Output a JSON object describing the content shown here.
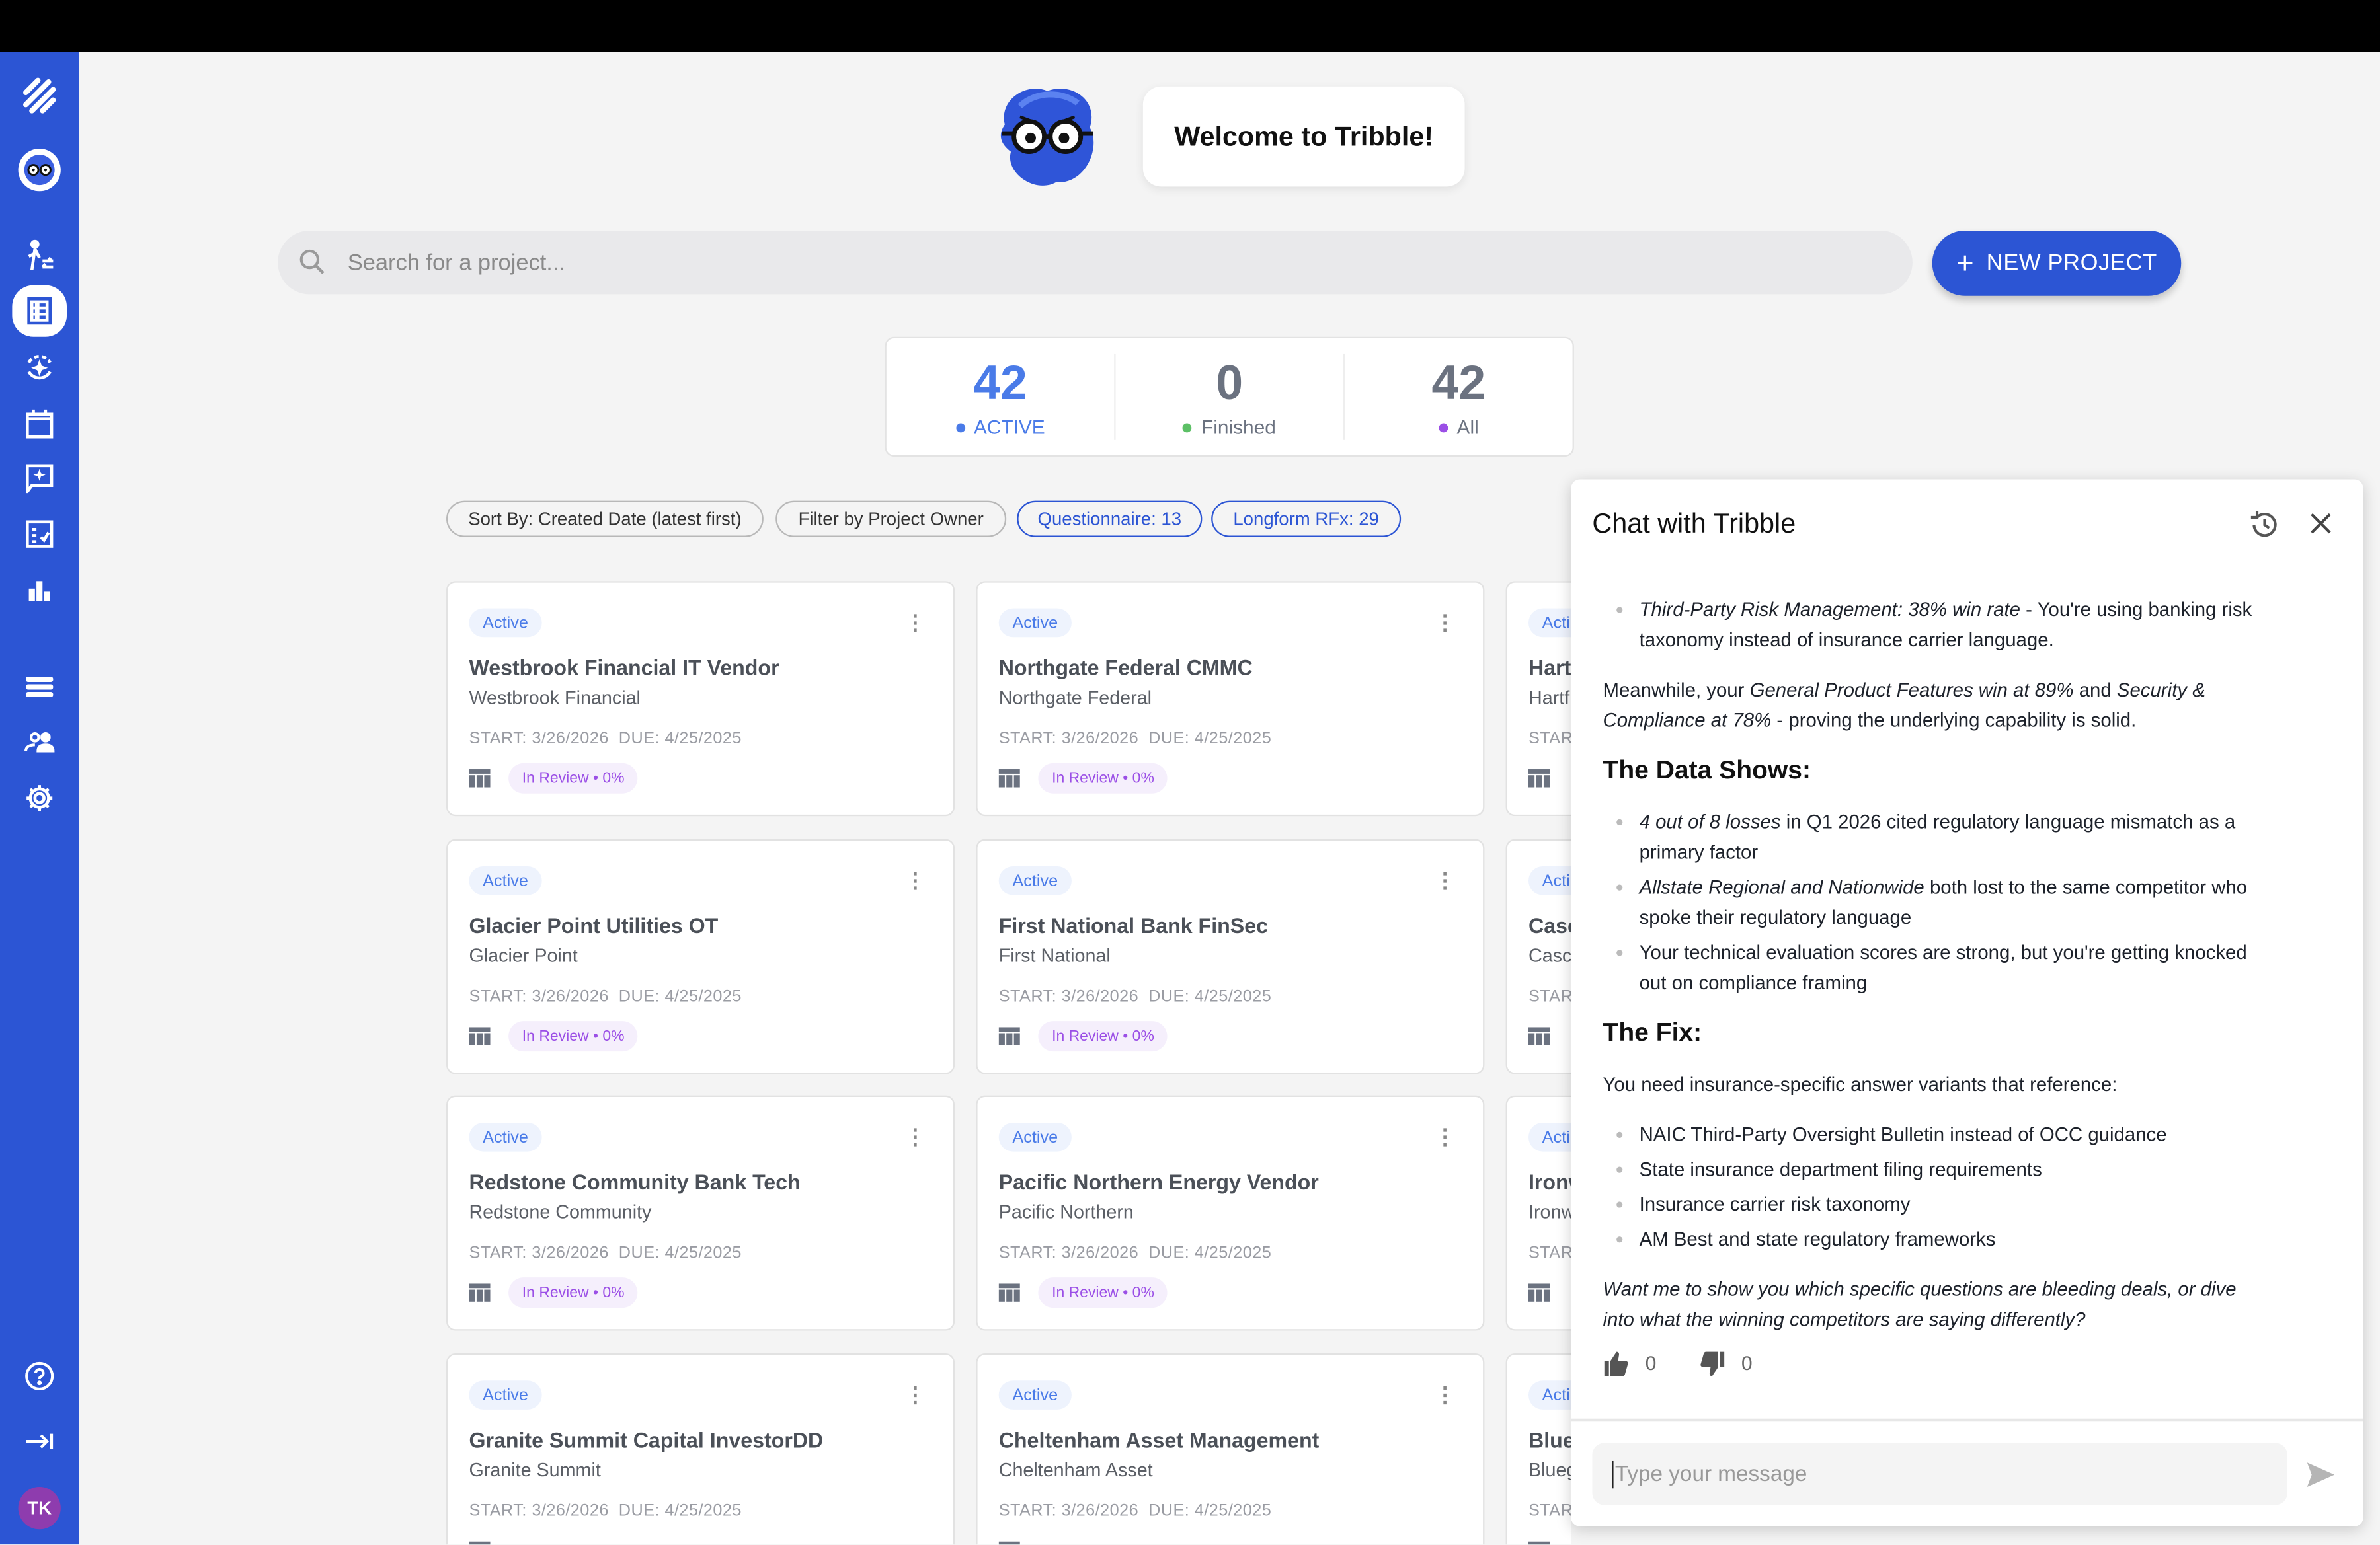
{
  "sidebar": {
    "brand_color": "#2c55d4",
    "icons": [
      "tribble-logo-icon",
      "mascot-avatar-icon",
      "handoff-icon",
      "projects-list-icon",
      "ai-cycle-icon",
      "calendar-icon",
      "ai-chat-icon",
      "checklist-icon",
      "analytics-icon",
      "database-icon",
      "users-icon",
      "settings-icon",
      "help-icon",
      "collapse-sidebar-icon"
    ],
    "active_item": "projects-list-icon",
    "user_initials": "TK"
  },
  "header": {
    "welcome": "Welcome to Tribble!"
  },
  "search": {
    "placeholder": "Search for a project..."
  },
  "new_project": {
    "label": "NEW PROJECT"
  },
  "stats": [
    {
      "value": "42",
      "label": "ACTIVE",
      "color": "#4a7be8"
    },
    {
      "value": "0",
      "label": "Finished",
      "color": "#5cc066"
    },
    {
      "value": "42",
      "label": "All",
      "color": "#9b4fe6"
    }
  ],
  "filters": {
    "sort": "Sort By: Created Date (latest first)",
    "owner": "Filter by Project Owner",
    "questionnaire": "Questionnaire: 13",
    "longform": "Longform RFx: 29"
  },
  "cards": [
    {
      "status": "Active",
      "title": "Westbrook Financial IT Vendor",
      "client": "Westbrook Financial",
      "start": "START: 3/26/2026",
      "due": "DUE: 4/25/2025",
      "review": "In Review • 0%"
    },
    {
      "status": "Active",
      "title": "Northgate Federal CMMC",
      "client": "Northgate Federal",
      "start": "START: 3/26/2026",
      "due": "DUE: 4/25/2025",
      "review": "In Review • 0%"
    },
    {
      "status": "Acti",
      "title": "Hart",
      "client": "Hartf",
      "start": "STAR",
      "due": "",
      "review": ""
    },
    {
      "status": "Active",
      "title": "Glacier Point Utilities OT",
      "client": "Glacier Point",
      "start": "START: 3/26/2026",
      "due": "DUE: 4/25/2025",
      "review": "In Review • 0%"
    },
    {
      "status": "Active",
      "title": "First National Bank FinSec",
      "client": "First National",
      "start": "START: 3/26/2026",
      "due": "DUE: 4/25/2025",
      "review": "In Review • 0%"
    },
    {
      "status": "Acti",
      "title": "Casc",
      "client": "Casc",
      "start": "STAR",
      "due": "",
      "review": ""
    },
    {
      "status": "Active",
      "title": "Redstone Community Bank Tech",
      "client": "Redstone Community",
      "start": "START: 3/26/2026",
      "due": "DUE: 4/25/2025",
      "review": "In Review • 0%"
    },
    {
      "status": "Active",
      "title": "Pacific Northern Energy Vendor",
      "client": "Pacific Northern",
      "start": "START: 3/26/2026",
      "due": "DUE: 4/25/2025",
      "review": "In Review • 0%"
    },
    {
      "status": "Acti",
      "title": "Ironw",
      "client": "Ironw",
      "start": "STAR",
      "due": "",
      "review": ""
    },
    {
      "status": "Active",
      "title": "Granite Summit Capital InvestorDD",
      "client": "Granite Summit",
      "start": "START: 3/26/2026",
      "due": "DUE: 4/25/2025",
      "review": ""
    },
    {
      "status": "Active",
      "title": "Cheltenham Asset Management",
      "client": "Cheltenham Asset",
      "start": "START: 3/26/2026",
      "due": "DUE: 4/25/2025",
      "review": ""
    },
    {
      "status": "Acti",
      "title": "Blue",
      "client": "Blueg",
      "start": "STAR",
      "due": "",
      "review": ""
    }
  ],
  "chat": {
    "title": "Chat with Tribble",
    "blocks": [
      {
        "type": "ul",
        "items": [
          [
            {
              "t": "Third-Party Risk Management: 38% win rate",
              "i": true
            },
            {
              "t": " - You're using banking risk taxonomy instead of insurance carrier language."
            }
          ]
        ]
      },
      {
        "type": "p",
        "parts": [
          {
            "t": "Meanwhile, your "
          },
          {
            "t": "General Product Features win at 89%",
            "i": true
          },
          {
            "t": " and "
          },
          {
            "t": "Security & Compliance at 78%",
            "i": true
          },
          {
            "t": " - proving the underlying capability is solid."
          }
        ]
      },
      {
        "type": "h",
        "text": "The Data Shows:"
      },
      {
        "type": "ul",
        "items": [
          [
            {
              "t": "4 out of 8 losses",
              "i": true
            },
            {
              "t": " in Q1 2026 cited regulatory language mismatch as a primary factor"
            }
          ],
          [
            {
              "t": "Allstate Regional and Nationwide",
              "i": true
            },
            {
              "t": " both lost to the same competitor who spoke their regulatory language"
            }
          ],
          [
            {
              "t": "Your technical evaluation scores are strong, but you're getting knocked out on compliance framing"
            }
          ]
        ]
      },
      {
        "type": "h",
        "text": "The Fix:"
      },
      {
        "type": "p",
        "parts": [
          {
            "t": "You need insurance-specific answer variants that reference:"
          }
        ]
      },
      {
        "type": "ul",
        "items": [
          [
            {
              "t": "NAIC Third-Party Oversight Bulletin instead of OCC guidance"
            }
          ],
          [
            {
              "t": "State insurance department filing requirements"
            }
          ],
          [
            {
              "t": "Insurance carrier risk taxonomy"
            }
          ],
          [
            {
              "t": "AM Best and state regulatory frameworks"
            }
          ]
        ]
      },
      {
        "type": "p",
        "parts": [
          {
            "t": "Want me to show you which specific questions are bleeding deals, or dive into what the winning competitors are saying differently?",
            "i": true
          }
        ]
      }
    ],
    "thumbs_up": "0",
    "thumbs_down": "0",
    "input_placeholder": "Type your message"
  }
}
